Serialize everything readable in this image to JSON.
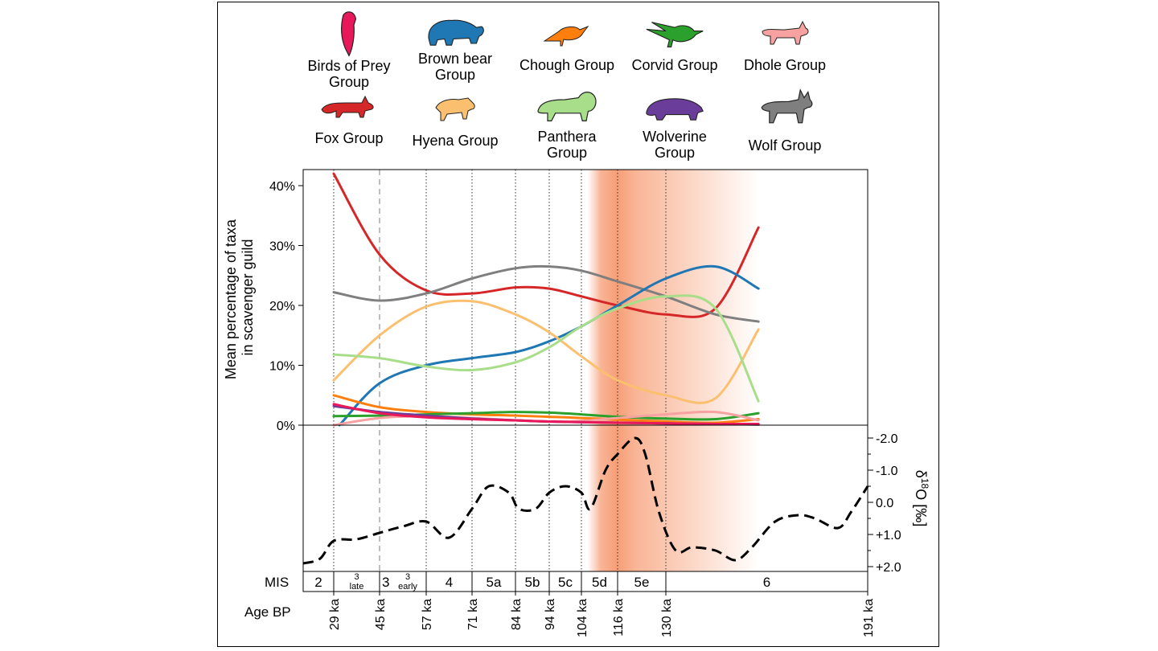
{
  "legend": [
    {
      "key": "birds",
      "label_lines": [
        "Birds of Prey",
        "Group"
      ],
      "color": "#e8195a",
      "icon": "bird-of-prey-icon"
    },
    {
      "key": "bear",
      "label_lines": [
        "Brown bear",
        "Group"
      ],
      "color": "#1f77b4",
      "icon": "brown-bear-icon"
    },
    {
      "key": "chough",
      "label_lines": [
        "Chough Group"
      ],
      "color": "#ff7f0e",
      "icon": "chough-icon"
    },
    {
      "key": "corvid",
      "label_lines": [
        "Corvid Group"
      ],
      "color": "#2ca02c",
      "icon": "corvid-icon"
    },
    {
      "key": "dhole",
      "label_lines": [
        "Dhole Group"
      ],
      "color": "#f7a1a1",
      "icon": "dhole-icon"
    },
    {
      "key": "fox",
      "label_lines": [
        "Fox Group"
      ],
      "color": "#d62728",
      "icon": "fox-icon"
    },
    {
      "key": "hyena",
      "label_lines": [
        "Hyena Group"
      ],
      "color": "#fbbf70",
      "icon": "hyena-icon"
    },
    {
      "key": "panthera",
      "label_lines": [
        "Panthera",
        "Group"
      ],
      "color": "#a8de8a",
      "icon": "lion-icon"
    },
    {
      "key": "wolverine",
      "label_lines": [
        "Wolverine",
        "Group"
      ],
      "color": "#6a3d9a",
      "icon": "wolverine-icon"
    },
    {
      "key": "wolf",
      "label_lines": [
        "Wolf Group"
      ],
      "color": "#7f7f7f",
      "icon": "wolf-icon"
    }
  ],
  "chart_data": {
    "type": "line",
    "ylabel_lines": [
      "Mean percentage of taxa",
      "in scavenger guild"
    ],
    "ylim": [
      0,
      43
    ],
    "yticks": [
      0,
      10,
      20,
      30,
      40
    ],
    "ytick_labels": [
      "0%",
      "10%",
      "20%",
      "30%",
      "40%"
    ],
    "x_ticks_age": [
      29,
      45,
      57,
      71,
      84,
      94,
      104,
      116,
      130,
      191
    ],
    "x_tick_labels": [
      "29 ka",
      "45 ka",
      "57 ka",
      "71 ka",
      "84 ka",
      "94 ka",
      "104 ka",
      "116 ka",
      "130 ka",
      "191 ka"
    ],
    "x_age_axis_label": "Age BP",
    "x_range_ka": [
      20,
      191
    ],
    "series": [
      {
        "name": "Fox Group",
        "color": "#d62728",
        "x": [
          29,
          45,
          57,
          71,
          84,
          94,
          104,
          116,
          130,
          145,
          158
        ],
        "values": [
          42,
          28.5,
          22.5,
          22,
          23,
          22.8,
          21.5,
          20,
          18.5,
          19.5,
          33
        ]
      },
      {
        "name": "Wolf Group",
        "color": "#7f7f7f",
        "x": [
          29,
          45,
          57,
          71,
          84,
          94,
          104,
          116,
          130,
          145,
          158
        ],
        "values": [
          22.2,
          20.8,
          22,
          24.5,
          26.2,
          26.5,
          25.8,
          24,
          21.5,
          18.5,
          17.3
        ]
      },
      {
        "name": "Brown bear Group",
        "color": "#1f77b4",
        "x": [
          31,
          45,
          57,
          71,
          84,
          94,
          104,
          116,
          130,
          145,
          158
        ],
        "values": [
          0,
          7,
          10,
          11.2,
          12.2,
          14,
          16.5,
          20,
          24.5,
          26.5,
          22.8
        ]
      },
      {
        "name": "Hyena Group",
        "color": "#fbbf70",
        "x": [
          29,
          45,
          57,
          71,
          84,
          94,
          104,
          116,
          130,
          145,
          158
        ],
        "values": [
          7.5,
          15,
          19.8,
          20.7,
          18.5,
          15.5,
          11.5,
          7.5,
          5,
          4.5,
          16
        ]
      },
      {
        "name": "Panthera Group",
        "color": "#a8de8a",
        "x": [
          29,
          45,
          57,
          71,
          84,
          94,
          104,
          116,
          130,
          145,
          158
        ],
        "values": [
          11.8,
          11.2,
          9.8,
          9.2,
          10.5,
          13,
          16.5,
          19.5,
          21.5,
          19.5,
          4
        ]
      },
      {
        "name": "Chough Group",
        "color": "#ff7f0e",
        "x": [
          29,
          45,
          57,
          71,
          84,
          94,
          104,
          116,
          130,
          145,
          158
        ],
        "values": [
          5,
          3,
          2.2,
          1.8,
          1.6,
          1.4,
          1.2,
          0.9,
          0.6,
          0.4,
          1
        ]
      },
      {
        "name": "Corvid Group",
        "color": "#2ca02c",
        "x": [
          29,
          45,
          57,
          71,
          84,
          94,
          104,
          116,
          130,
          145,
          158
        ],
        "values": [
          1.5,
          1.6,
          1.8,
          2,
          2.2,
          2.1,
          1.8,
          1.4,
          1.1,
          1,
          2
        ]
      },
      {
        "name": "Dhole Group",
        "color": "#f7a1a1",
        "x": [
          29,
          45,
          57,
          71,
          84,
          94,
          104,
          116,
          130,
          145,
          158
        ],
        "values": [
          0,
          1.2,
          1.5,
          1.2,
          0.8,
          0.6,
          0.7,
          1.2,
          1.8,
          2.2,
          0.8
        ]
      },
      {
        "name": "Wolverine Group",
        "color": "#6a3d9a",
        "x": [
          29,
          45,
          57,
          71,
          84,
          94,
          104,
          116,
          130,
          145,
          158
        ],
        "values": [
          3.2,
          2.2,
          1.6,
          1.1,
          0.8,
          0.6,
          0.5,
          0.4,
          0.3,
          0.2,
          0.1
        ]
      },
      {
        "name": "Birds of Prey Group",
        "color": "#e8195a",
        "x": [
          29,
          45,
          57,
          71,
          84,
          94,
          104,
          116,
          130,
          145,
          158
        ],
        "values": [
          3.5,
          2,
          1.3,
          1,
          0.8,
          0.6,
          0.5,
          0.4,
          0.3,
          0.2,
          0.2
        ]
      }
    ],
    "d18o": {
      "ylabel": "δ18O [‰]",
      "ylim_inverted": [
        2.2,
        -2.2
      ],
      "yticks": [
        -2.0,
        -1.0,
        0.0,
        1.0,
        2.0
      ],
      "ytick_labels": [
        "-2.0",
        "-1.0",
        "0.0",
        "+1.0",
        "+2.0"
      ],
      "x": [
        20,
        25,
        29,
        37,
        45,
        51,
        57,
        64,
        71,
        76,
        82,
        85,
        90,
        94,
        99,
        104,
        107,
        112,
        116,
        121,
        124,
        128,
        133,
        138,
        145,
        151,
        156,
        163,
        170,
        175,
        182,
        186,
        191
      ],
      "values": [
        1.9,
        1.75,
        1.2,
        1.15,
        0.95,
        0.75,
        0.6,
        1.1,
        0.2,
        -0.5,
        -0.3,
        0.2,
        0.2,
        -0.3,
        -0.5,
        -0.3,
        0.2,
        -1.0,
        -1.5,
        -2.0,
        -1.5,
        0.3,
        1.5,
        1.4,
        1.5,
        1.8,
        1.4,
        0.6,
        0.4,
        0.5,
        0.8,
        0.3,
        -0.5
      ]
    },
    "mis_label": "MIS",
    "mis_stages": [
      {
        "start": 20,
        "end": 29,
        "label": "2",
        "sup": "",
        "sub": ""
      },
      {
        "start": 29,
        "end": 45,
        "label": "",
        "sup": "3",
        "sub": "late"
      },
      {
        "start": 45,
        "end": 57,
        "label": "3",
        "sup": "3",
        "sub": "early"
      },
      {
        "start": 57,
        "end": 71,
        "label": "4",
        "sup": "",
        "sub": ""
      },
      {
        "start": 71,
        "end": 84,
        "label": "5a",
        "sup": "",
        "sub": ""
      },
      {
        "start": 84,
        "end": 94,
        "label": "5b",
        "sup": "",
        "sub": ""
      },
      {
        "start": 94,
        "end": 104,
        "label": "5c",
        "sup": "",
        "sub": ""
      },
      {
        "start": 104,
        "end": 116,
        "label": "5d",
        "sup": "",
        "sub": ""
      },
      {
        "start": 116,
        "end": 130,
        "label": "5e",
        "sup": "",
        "sub": ""
      },
      {
        "start": 130,
        "end": 191,
        "label": "6",
        "sup": "",
        "sub": ""
      }
    ],
    "highlight": {
      "core_start": 116,
      "core_end": 130,
      "fade_left_start": 106,
      "fade_right_end": 158,
      "color": "#f58d5e"
    }
  }
}
